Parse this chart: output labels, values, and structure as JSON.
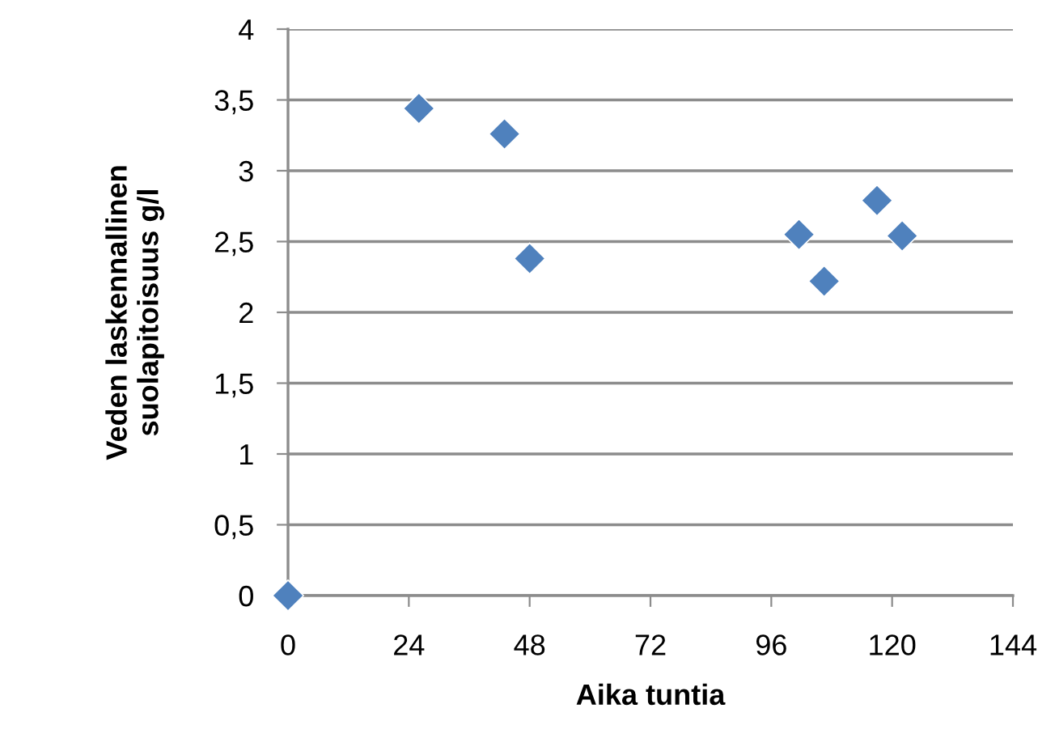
{
  "chart_data": {
    "type": "scatter",
    "xlabel": "Aika tuntia",
    "ylabel": "Veden laskennallinen\nsuolapitoisuus g/l",
    "series": [
      {
        "color": "#4f81bd",
        "x": [
          0,
          26,
          43,
          48,
          101.5,
          106.5,
          117,
          122
        ],
        "values": [
          0,
          3.44,
          3.26,
          2.38,
          2.55,
          2.22,
          2.79,
          2.54
        ]
      }
    ],
    "xlim": [
      0,
      144
    ],
    "xticks": [
      0,
      24,
      48,
      72,
      96,
      120,
      144
    ],
    "ylim": [
      0,
      4
    ],
    "yticks": [
      {
        "value": 0,
        "label": "0"
      },
      {
        "value": 0.5,
        "label": "0,5"
      },
      {
        "value": 1,
        "label": "1"
      },
      {
        "value": 1.5,
        "label": "1,5"
      },
      {
        "value": 2,
        "label": "2"
      },
      {
        "value": 2.5,
        "label": "2,5"
      },
      {
        "value": 3,
        "label": "3"
      },
      {
        "value": 3.5,
        "label": "3,5"
      },
      {
        "value": 4,
        "label": "4"
      }
    ],
    "grid": "y",
    "marker": "diamond",
    "legend": false
  }
}
